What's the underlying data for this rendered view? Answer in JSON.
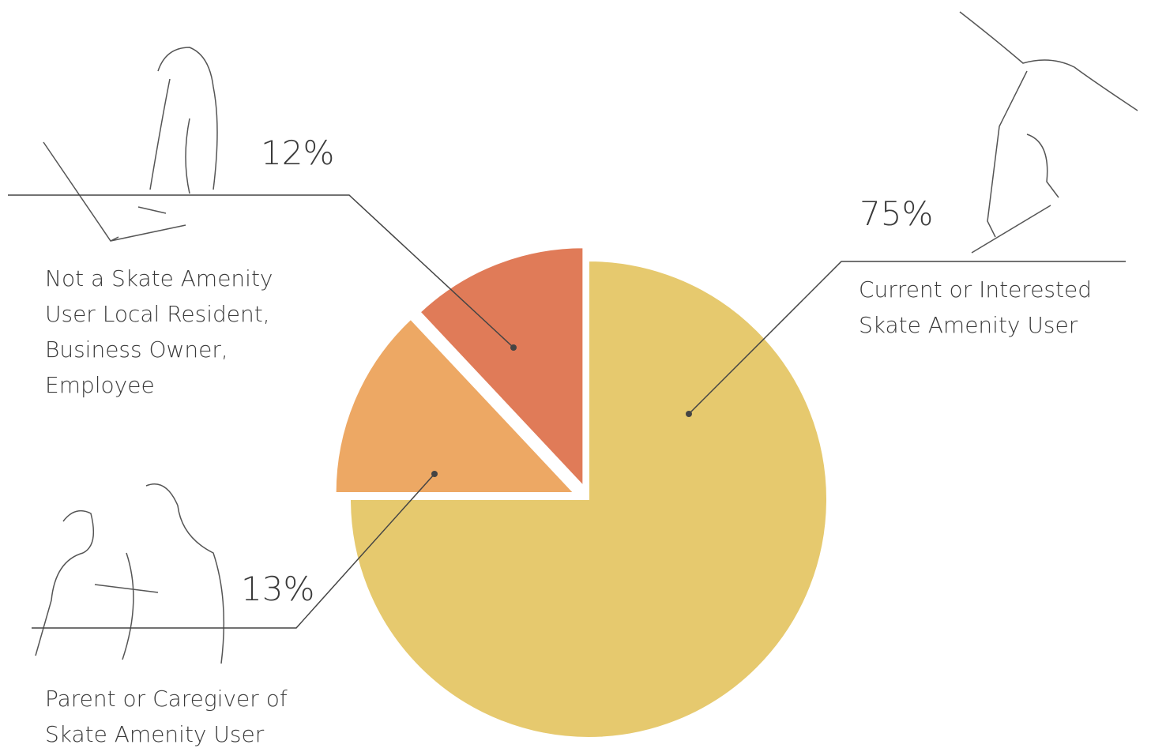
{
  "chart_data": {
    "type": "pie",
    "categories": [
      "Current or Interested Skate Amenity User",
      "Parent or Caregiver of Skate Amenity User",
      "Not a Skate Amenity User Local Resident, Business Owner, Employee"
    ],
    "values": [
      75,
      13,
      12
    ],
    "value_labels": [
      "75%",
      "13%",
      "12%"
    ],
    "colors": [
      "#e6c96e",
      "#eda864",
      "#e07b58"
    ]
  }
}
